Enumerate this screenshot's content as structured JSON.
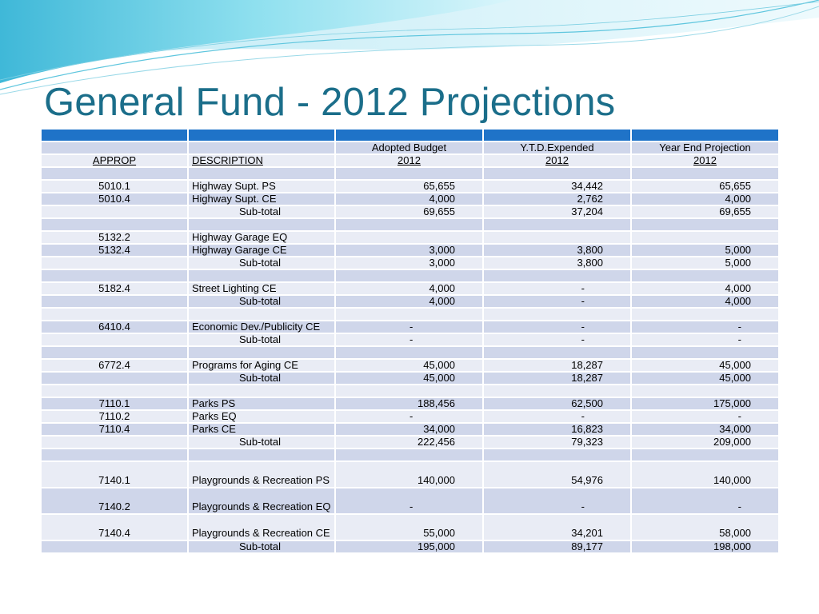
{
  "title": "General Fund -  2012 Projections",
  "table": {
    "header1": [
      "",
      "",
      "Adopted Budget",
      "Y.T.D.Expended",
      "Year End Projection"
    ],
    "header2": [
      "APPROP",
      "DESCRIPTION",
      "2012",
      "2012",
      "2012"
    ],
    "rows": [
      [
        "",
        "",
        "",
        "",
        ""
      ],
      [
        "5010.1",
        "Highway Supt. PS",
        "65,655",
        "34,442",
        "65,655"
      ],
      [
        "5010.4",
        "Highway Supt. CE",
        "4,000",
        "2,762",
        "4,000"
      ],
      [
        "",
        "Sub-total",
        "69,655",
        "37,204",
        "69,655"
      ],
      [
        "",
        "",
        "",
        "",
        ""
      ],
      [
        "5132.2",
        "Highway Garage EQ",
        "",
        "",
        ""
      ],
      [
        "5132.4",
        "Highway Garage CE",
        "3,000",
        "3,800",
        "5,000"
      ],
      [
        "",
        "Sub-total",
        "3,000",
        "3,800",
        "5,000"
      ],
      [
        "",
        "",
        "",
        "",
        ""
      ],
      [
        "5182.4",
        "Street Lighting CE",
        "4,000",
        "-",
        "4,000"
      ],
      [
        "",
        "Sub-total",
        "4,000",
        "-",
        "4,000"
      ],
      [
        "",
        "",
        "",
        "",
        ""
      ],
      [
        "6410.4",
        "Economic Dev./Publicity CE",
        "-",
        "-",
        "-"
      ],
      [
        "",
        "Sub-total",
        "-",
        "-",
        "-"
      ],
      [
        "",
        "",
        "",
        "",
        ""
      ],
      [
        "6772.4",
        "Programs for Aging CE",
        "45,000",
        "18,287",
        "45,000"
      ],
      [
        "",
        "Sub-total",
        "45,000",
        "18,287",
        "45,000"
      ],
      [
        "",
        "",
        "",
        "",
        ""
      ],
      [
        "7110.1",
        "Parks PS",
        "188,456",
        "62,500",
        "175,000"
      ],
      [
        "7110.2",
        "Parks EQ",
        "-",
        "-",
        "-"
      ],
      [
        "7110.4",
        "Parks CE",
        "34,000",
        "16,823",
        "34,000"
      ],
      [
        "",
        "Sub-total",
        "222,456",
        "79,323",
        "209,000"
      ],
      [
        "",
        "",
        "",
        "",
        ""
      ],
      [
        "7140.1",
        "Playgrounds & Recreation PS",
        "140,000",
        "54,976",
        "140,000"
      ],
      [
        "7140.2",
        "Playgrounds & Recreation EQ",
        "-",
        "-",
        "-"
      ],
      [
        "7140.4",
        "Playgrounds & Recreation CE",
        "55,000",
        "34,201",
        "58,000"
      ],
      [
        "",
        "Sub-total",
        "195,000",
        "89,177",
        "198,000"
      ]
    ]
  },
  "colors": {
    "title": "#1b6e8a",
    "header_bar": "#1f73c8",
    "row_dark": "#cfd6ea",
    "row_light": "#e9ecf5",
    "wave": "#6fd3e6"
  }
}
